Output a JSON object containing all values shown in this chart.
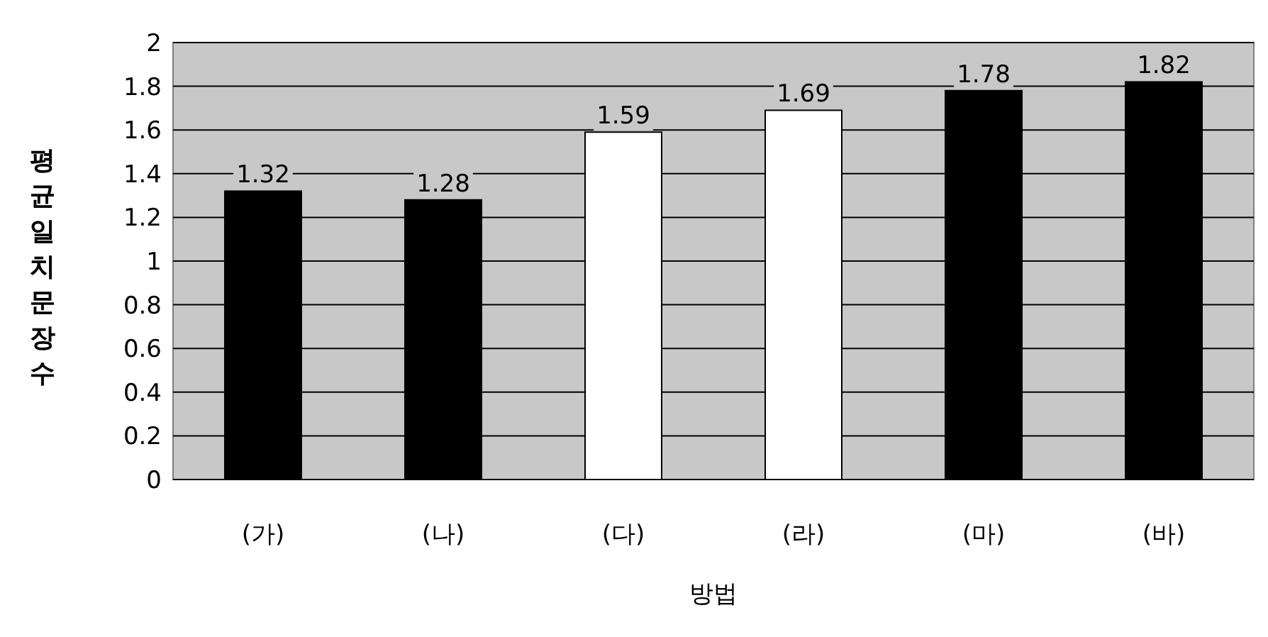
{
  "chart_data": {
    "type": "bar",
    "xlabel": "방법",
    "ylabel": "평균일치문장수",
    "categories": [
      "(가)",
      "(나)",
      "(다)",
      "(라)",
      "(마)",
      "(바)"
    ],
    "values": [
      1.32,
      1.28,
      1.59,
      1.69,
      1.78,
      1.82
    ],
    "colors": [
      "#000000",
      "#000000",
      "#ffffff",
      "#ffffff",
      "#000000",
      "#000000"
    ],
    "ylim": [
      0,
      2
    ],
    "yticks": [
      0,
      0.2,
      0.4,
      0.6,
      0.8,
      1,
      1.2,
      1.4,
      1.6,
      1.8,
      2
    ],
    "grid": "y",
    "data_labels": true
  }
}
